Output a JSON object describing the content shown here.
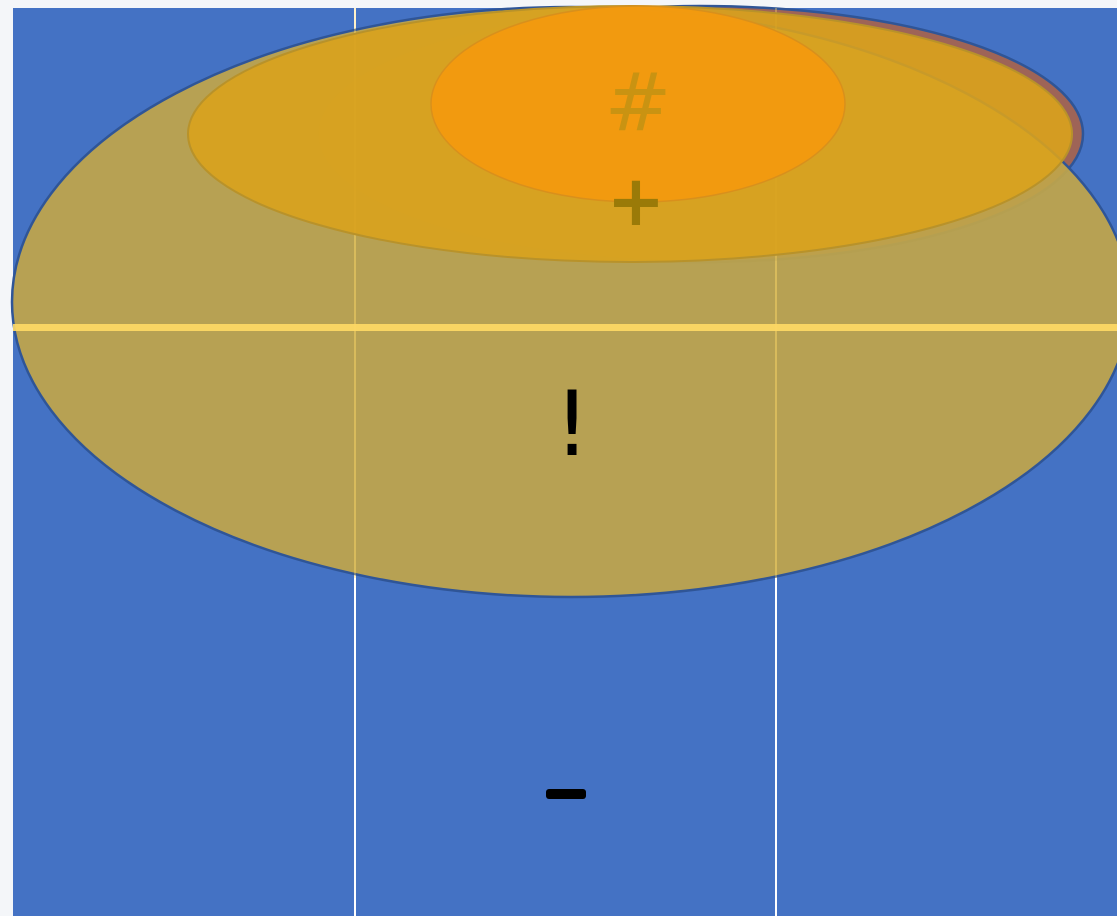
{
  "colors": {
    "page_border": "#f4f6f9",
    "background": "#4472c4",
    "grid_line": "#ffffff",
    "highlight_band": "#ffd966",
    "large_ellipse_fill": "#bfa54a",
    "large_ellipse_stroke": "#2f5597",
    "brown_ellipse_fill": "#9e6457",
    "brown_ellipse_stroke": "#2f5597",
    "mid_ellipse_fill": "#d9a21d",
    "mid_ellipse_stroke": "#b8922a",
    "small_ellipse_fill": "#f39a0f",
    "small_ellipse_stroke": "#d8901c",
    "hash_color": "#c99312",
    "plus_color": "#9a7a08",
    "exclamation_color": "#000000",
    "minus_color": "#000000"
  },
  "symbols": {
    "hash": "#",
    "plus": "+",
    "exclamation": "!",
    "minus": "-"
  }
}
